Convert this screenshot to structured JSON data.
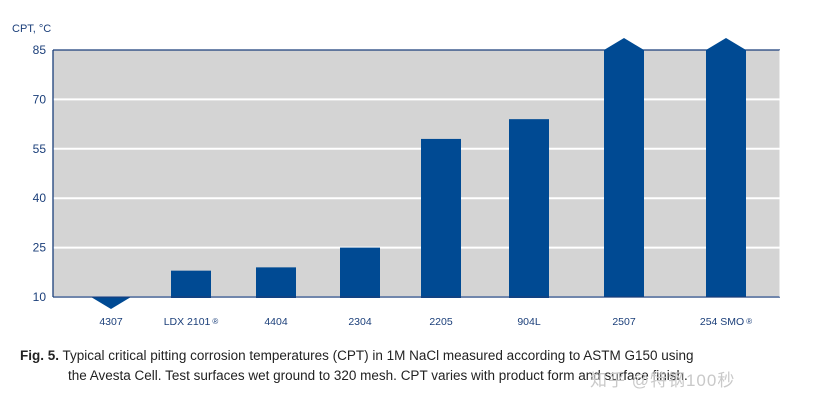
{
  "chart_data": {
    "type": "bar",
    "ylabel": "CPT, °C",
    "ylim": [
      10,
      85
    ],
    "yticks": [
      10,
      25,
      40,
      55,
      70,
      85
    ],
    "grid": true,
    "categories": [
      "4307",
      "LDX 2101",
      "4404",
      "2304",
      "2205",
      "904L",
      "2507",
      "254 SMO"
    ],
    "registered": [
      false,
      true,
      false,
      false,
      false,
      false,
      false,
      true
    ],
    "values": [
      10,
      18,
      19,
      25,
      58,
      64,
      85,
      85
    ],
    "markers": [
      "below-range",
      "normal",
      "normal",
      "normal",
      "normal",
      "normal",
      "above-range",
      "above-range"
    ],
    "colors": {
      "bar": "#004a93",
      "plot_bg": "#d4d4d4",
      "grid": "#ffffff",
      "axis": "#1b3f7a"
    }
  },
  "caption": {
    "label": "Fig. 5.",
    "line1": "Typical critical pitting corrosion temperatures (CPT) in 1M NaCl measured according to ASTM G150 using",
    "line2": "the Avesta Cell. Test surfaces wet ground to 320 mesh. CPT varies with product form and surface finish."
  },
  "watermark": "知乎 @特钢100秒"
}
